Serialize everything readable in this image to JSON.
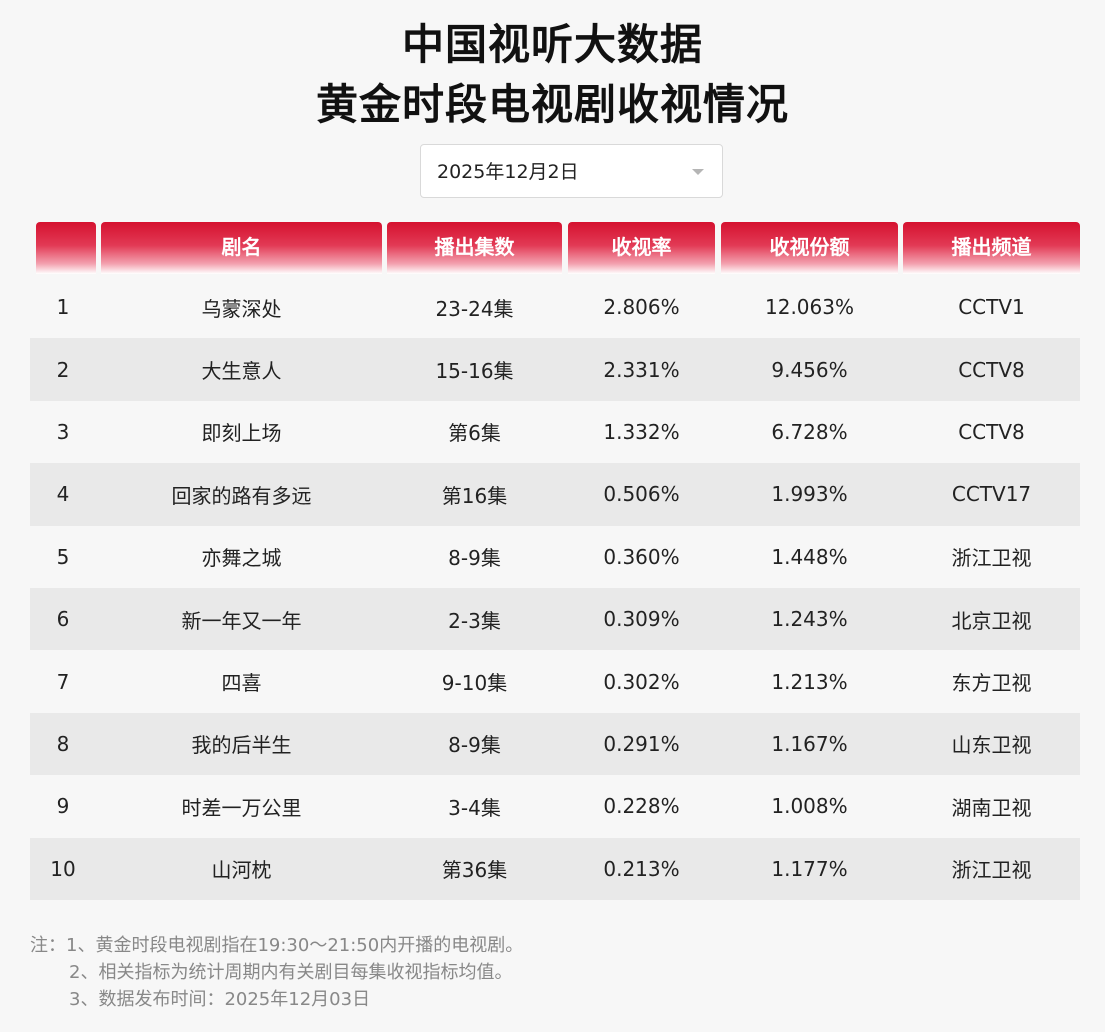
{
  "header": {
    "title_line1": "中国视听大数据",
    "title_line2": "黄金时段电视剧收视情况"
  },
  "date_select": {
    "value": "2025年12月2日",
    "caret_icon": "chevron-down-icon"
  },
  "table": {
    "columns": [
      "",
      "剧名",
      "播出集数",
      "收视率",
      "收视份额",
      "播出频道"
    ],
    "rows": [
      [
        "1",
        "乌蒙深处",
        "23-24集",
        "2.806%",
        "12.063%",
        "CCTV1"
      ],
      [
        "2",
        "大生意人",
        "15-16集",
        "2.331%",
        "9.456%",
        "CCTV8"
      ],
      [
        "3",
        "即刻上场",
        "第6集",
        "1.332%",
        "6.728%",
        "CCTV8"
      ],
      [
        "4",
        "回家的路有多远",
        "第16集",
        "0.506%",
        "1.993%",
        "CCTV17"
      ],
      [
        "5",
        "亦舞之城",
        "8-9集",
        "0.360%",
        "1.448%",
        "浙江卫视"
      ],
      [
        "6",
        "新一年又一年",
        "2-3集",
        "0.309%",
        "1.243%",
        "北京卫视"
      ],
      [
        "7",
        "四喜",
        "9-10集",
        "0.302%",
        "1.213%",
        "东方卫视"
      ],
      [
        "8",
        "我的后半生",
        "8-9集",
        "0.291%",
        "1.167%",
        "山东卫视"
      ],
      [
        "9",
        "时差一万公里",
        "3-4集",
        "0.228%",
        "1.008%",
        "湖南卫视"
      ],
      [
        "10",
        "山河枕",
        "第36集",
        "0.213%",
        "1.177%",
        "浙江卫视"
      ]
    ]
  },
  "notes": [
    "注：1、黄金时段电视剧指在19:30～21:50内开播的电视剧。",
    "2、相关指标为统计周期内有关剧目每集收视指标均值。",
    "3、数据发布时间：2025年12月03日"
  ],
  "colors": {
    "header_red": "#d5112f",
    "stripe": "#e9e9e9",
    "background": "#f7f7f7"
  }
}
